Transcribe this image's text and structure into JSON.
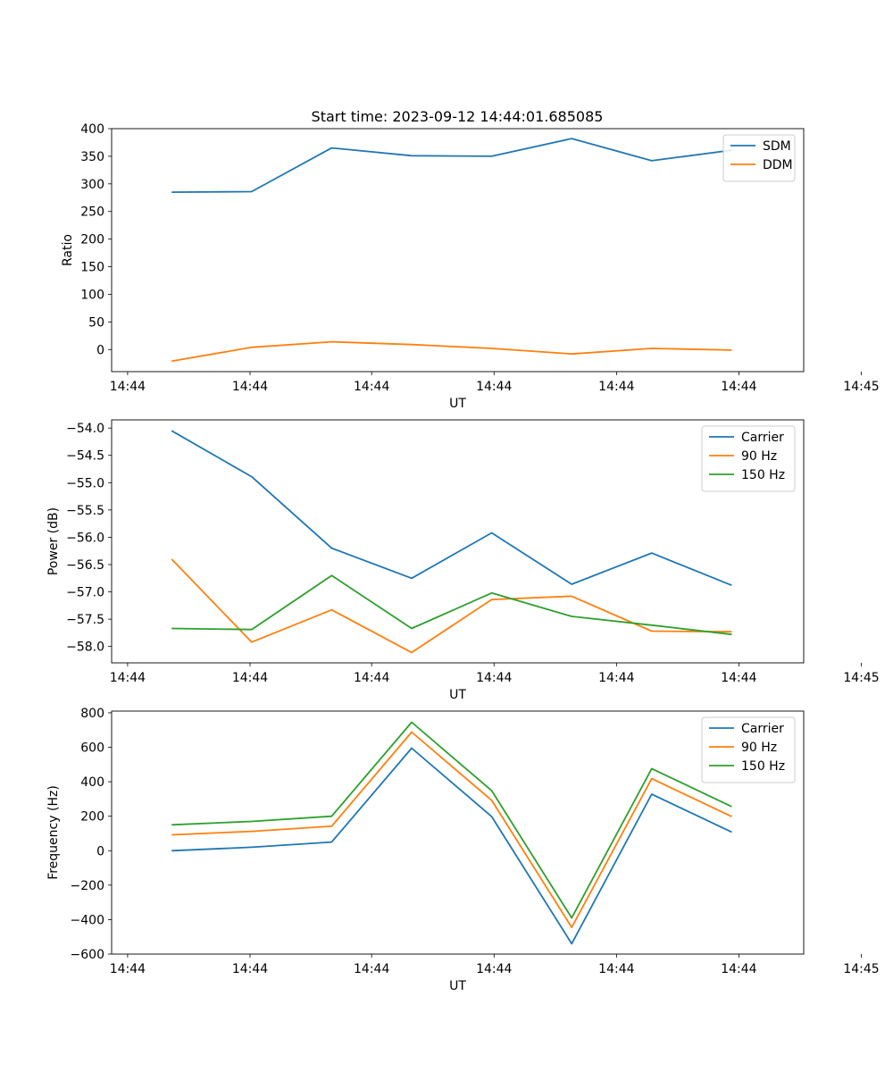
{
  "figure_title": "Start time: 2023-09-12 14:44:01.685085",
  "colors": {
    "blue": "#1f77b4",
    "orange": "#ff7f0e",
    "green": "#2ca02c"
  },
  "chart_data": [
    {
      "type": "line",
      "title": "Start time: 2023-09-12 14:44:01.685085",
      "xlabel": "UT",
      "ylabel": "Ratio",
      "x": [
        1,
        2,
        3,
        4,
        5,
        6,
        7,
        8
      ],
      "xlim": [
        0.25,
        8.9
      ],
      "xticks": [
        0.45,
        1.98,
        3.5,
        5.03,
        6.56,
        8.09,
        9.62
      ],
      "xtick_labels": [
        "14:44",
        "14:44",
        "14:44",
        "14:44",
        "14:44",
        "14:44",
        "14:45"
      ],
      "ylim": [
        -40,
        400
      ],
      "yticks": [
        0,
        50,
        100,
        150,
        200,
        250,
        300,
        350,
        400
      ],
      "legend": "top-right",
      "series": [
        {
          "name": "SDM",
          "color": "#1f77b4",
          "values": [
            285,
            286,
            365,
            351,
            350,
            382,
            342,
            361
          ]
        },
        {
          "name": "DDM",
          "color": "#ff7f0e",
          "values": [
            -21,
            4,
            14,
            9,
            2,
            -8,
            2,
            -1
          ]
        }
      ]
    },
    {
      "type": "line",
      "xlabel": "UT",
      "ylabel": "Power (dB)",
      "x": [
        1,
        2,
        3,
        4,
        5,
        6,
        7,
        8
      ],
      "xlim": [
        0.25,
        8.9
      ],
      "xticks": [
        0.45,
        1.98,
        3.5,
        5.03,
        6.56,
        8.09,
        9.62
      ],
      "xtick_labels": [
        "14:44",
        "14:44",
        "14:44",
        "14:44",
        "14:44",
        "14:44",
        "14:45"
      ],
      "ylim": [
        -58.3,
        -53.85
      ],
      "yticks": [
        -54.0,
        -54.5,
        -55.0,
        -55.5,
        -56.0,
        -56.5,
        -57.0,
        -57.5,
        -58.0
      ],
      "ytick_labels": [
        "−54.0",
        "−54.5",
        "−55.0",
        "−55.5",
        "−56.0",
        "−56.5",
        "−57.0",
        "−57.5",
        "−58.0"
      ],
      "legend": "top-right",
      "series": [
        {
          "name": "Carrier",
          "color": "#1f77b4",
          "values": [
            -54.05,
            -54.89,
            -56.2,
            -56.75,
            -55.92,
            -56.86,
            -56.29,
            -56.88
          ]
        },
        {
          "name": "90 Hz",
          "color": "#ff7f0e",
          "values": [
            -56.4,
            -57.92,
            -57.33,
            -58.11,
            -57.14,
            -57.08,
            -57.72,
            -57.73
          ]
        },
        {
          "name": "150 Hz",
          "color": "#2ca02c",
          "values": [
            -57.67,
            -57.69,
            -56.7,
            -57.67,
            -57.02,
            -57.45,
            -57.61,
            -57.78
          ]
        }
      ]
    },
    {
      "type": "line",
      "xlabel": "UT",
      "ylabel": "Frequency (Hz)",
      "x": [
        1,
        2,
        3,
        4,
        5,
        6,
        7,
        8
      ],
      "xlim": [
        0.25,
        8.9
      ],
      "xticks": [
        0.45,
        1.98,
        3.5,
        5.03,
        6.56,
        8.09,
        9.62
      ],
      "xtick_labels": [
        "14:44",
        "14:44",
        "14:44",
        "14:44",
        "14:44",
        "14:44",
        "14:45"
      ],
      "ylim": [
        -600,
        810
      ],
      "yticks": [
        800,
        600,
        400,
        200,
        0,
        -200,
        -400,
        -600
      ],
      "ytick_labels": [
        "800",
        "600",
        "400",
        "200",
        "0",
        "−200",
        "−400",
        "−600"
      ],
      "legend": "top-right",
      "series": [
        {
          "name": "Carrier",
          "color": "#1f77b4",
          "values": [
            0,
            20,
            50,
            595,
            198,
            -540,
            328,
            108
          ]
        },
        {
          "name": "90 Hz",
          "color": "#ff7f0e",
          "values": [
            92,
            112,
            142,
            688,
            292,
            -445,
            418,
            198
          ]
        },
        {
          "name": "150 Hz",
          "color": "#2ca02c",
          "values": [
            150,
            170,
            200,
            745,
            348,
            -390,
            476,
            256
          ]
        }
      ]
    }
  ]
}
